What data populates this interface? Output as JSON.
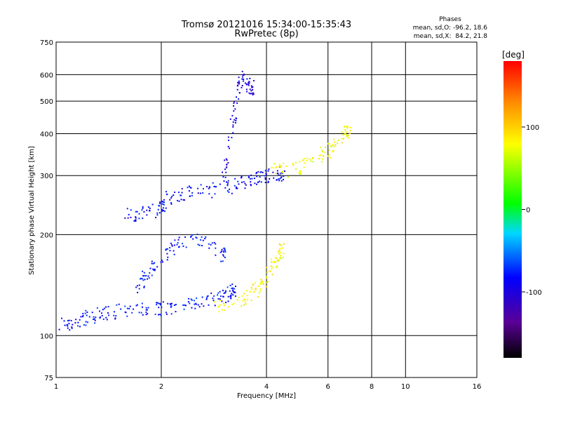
{
  "chart_data": {
    "type": "scatter",
    "title": "Tromsø 20121016 15:34:00-15:35:43",
    "subtitle": "RwPretec (8p)",
    "xlabel": "Frequency [MHz]",
    "ylabel": "Stationary phase Virtual Height [km]",
    "x_scale": "log",
    "y_scale": "log",
    "xlim": [
      1,
      16
    ],
    "ylim": [
      75,
      750
    ],
    "x_ticks": [
      "1",
      "2",
      "4",
      "6",
      "8",
      "10",
      "16"
    ],
    "y_ticks": [
      "75",
      "100",
      "200",
      "300",
      "400",
      "500",
      "600",
      "750"
    ],
    "grid": true,
    "phases_box": {
      "title": "Phases",
      "line1": "mean, sd,O: -96.2, 18.6",
      "line2": "mean, sd,X:  84.2, 21.8"
    },
    "colorbar": {
      "label": "[deg]",
      "range": [
        -180,
        180
      ],
      "ticks": [
        "100",
        "0",
        "-100"
      ],
      "colormap": "rainbow (black-purple-blue-cyan-green-yellow-red)"
    },
    "traces": [
      {
        "name": "",
        "desc": "E-region O lower trace",
        "phase": -95,
        "points": [
          [
            1.0,
            107
          ],
          [
            1.1,
            110
          ],
          [
            1.2,
            113
          ],
          [
            1.3,
            116
          ],
          [
            1.4,
            118
          ],
          [
            1.6,
            119
          ],
          [
            1.8,
            120
          ],
          [
            2.0,
            121
          ],
          [
            2.2,
            122
          ],
          [
            2.5,
            125
          ],
          [
            2.8,
            128
          ],
          [
            3.0,
            131
          ],
          [
            3.2,
            136
          ]
        ]
      },
      {
        "name": "",
        "desc": "E-region patch",
        "phase": -95,
        "points": [
          [
            1.7,
            140
          ],
          [
            1.8,
            150
          ],
          [
            1.9,
            165
          ],
          [
            2.1,
            180
          ],
          [
            2.3,
            190
          ],
          [
            2.6,
            195
          ],
          [
            3.0,
            175
          ]
        ]
      },
      {
        "name": "",
        "desc": "E-region X trace",
        "phase": 80,
        "points": [
          [
            2.8,
            123
          ],
          [
            3.2,
            126
          ],
          [
            3.5,
            132
          ],
          [
            3.8,
            140
          ],
          [
            4.0,
            150
          ],
          [
            4.2,
            165
          ],
          [
            4.4,
            180
          ]
        ]
      },
      {
        "name": "",
        "desc": "F-region O trace",
        "phase": -100,
        "points": [
          [
            1.55,
            230
          ],
          [
            1.7,
            232
          ],
          [
            1.9,
            235
          ],
          [
            2.0,
            240
          ],
          [
            2.1,
            260
          ],
          [
            2.3,
            267
          ],
          [
            2.6,
            270
          ],
          [
            3.0,
            275
          ],
          [
            3.3,
            285
          ],
          [
            3.6,
            292
          ],
          [
            3.8,
            298
          ],
          [
            4.0,
            300
          ],
          [
            4.4,
            305
          ]
        ]
      },
      {
        "name": "",
        "desc": "F-region O cusp",
        "phase": -110,
        "points": [
          [
            3.0,
            300
          ],
          [
            3.1,
            350
          ],
          [
            3.2,
            450
          ],
          [
            3.3,
            550
          ],
          [
            3.4,
            600
          ],
          [
            3.6,
            550
          ]
        ]
      },
      {
        "name": "",
        "desc": "F-region X trace",
        "phase": 80,
        "points": [
          [
            4.0,
            330
          ],
          [
            4.5,
            310
          ],
          [
            5.0,
            320
          ],
          [
            5.5,
            330
          ],
          [
            6.0,
            360
          ],
          [
            6.3,
            380
          ],
          [
            6.8,
            410
          ]
        ]
      }
    ]
  }
}
